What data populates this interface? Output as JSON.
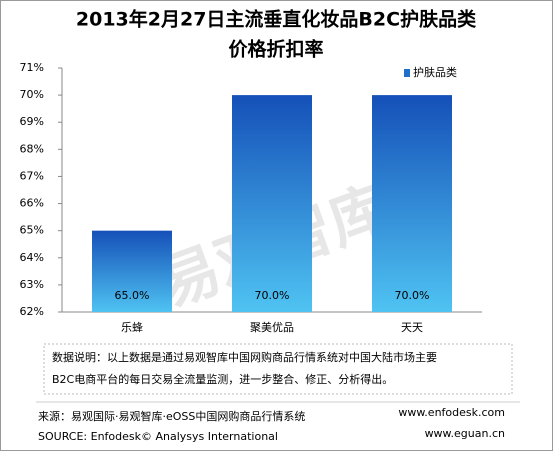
{
  "chart_data": {
    "type": "bar",
    "title": "2013年2月27日主流垂直化妆品B2C护肤品类",
    "subtitle": "价格折扣率",
    "categories": [
      "乐蜂",
      "聚美优品",
      "天天"
    ],
    "series": [
      {
        "name": "护肤品类",
        "color": "#1f6fc9",
        "values": [
          65,
          70,
          70
        ],
        "value_labels": [
          "65.0%",
          "70.0%",
          "70.0%"
        ]
      }
    ],
    "ylim": [
      62,
      71
    ],
    "yticks": [
      {
        "value": 62,
        "label": "62%"
      },
      {
        "value": 63,
        "label": "63%"
      },
      {
        "value": 64,
        "label": "64%"
      },
      {
        "value": 65,
        "label": "65%"
      },
      {
        "value": 66,
        "label": "66%"
      },
      {
        "value": 67,
        "label": "67%"
      },
      {
        "value": 68,
        "label": "68%"
      },
      {
        "value": 69,
        "label": "69%"
      },
      {
        "value": 70,
        "label": "70%"
      },
      {
        "value": 71,
        "label": "71%"
      }
    ],
    "legend": "top-right",
    "watermark": "易观智库",
    "note_lines": [
      "数据说明：以上数据是通过易观智库中国网购商品行情系统对中国大陆市场主要",
      "B2C电商平台的每日交易全流量监测，进一步整合、修正、分析得出。"
    ],
    "source_lines": [
      "来源：易观国际·易观智库·eOSS中国网购商品行情系统",
      "SOURCE: Enfodesk© Analysys International"
    ],
    "websites": [
      "www.enfodesk.com",
      "www.eguan.cn"
    ]
  }
}
